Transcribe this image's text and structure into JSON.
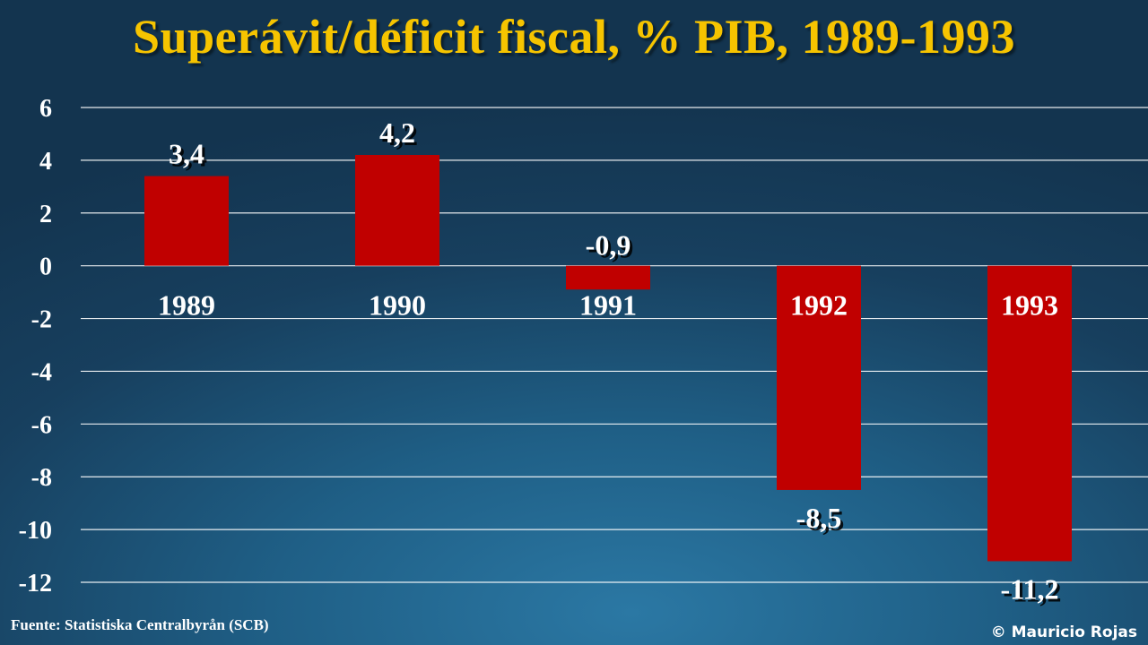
{
  "title": "Superávit/déficit fiscal, % PIB, 1989-1993",
  "source": "Fuente: Statistiska Centralbyrån (SCB)",
  "copyright": "© Mauricio Rojas",
  "colors": {
    "bar": "#c00000",
    "title": "#f6c400",
    "grid": "#ffffff",
    "text": "#ffffff"
  },
  "chart_data": {
    "type": "bar",
    "title": "Superávit/déficit fiscal, % PIB, 1989-1993",
    "categories": [
      "1989",
      "1990",
      "1991",
      "1992",
      "1993"
    ],
    "values": [
      3.4,
      4.2,
      -0.9,
      -8.5,
      -11.2
    ],
    "data_labels": [
      "3,4",
      "4,2",
      "-0,9",
      "-8,5",
      "-11,2"
    ],
    "ylim": [
      -12,
      6
    ],
    "yticks": [
      6,
      4,
      2,
      0,
      -2,
      -4,
      -6,
      -8,
      -10,
      -12
    ],
    "grid": true,
    "legend": "none",
    "xlabel": "",
    "ylabel": ""
  }
}
